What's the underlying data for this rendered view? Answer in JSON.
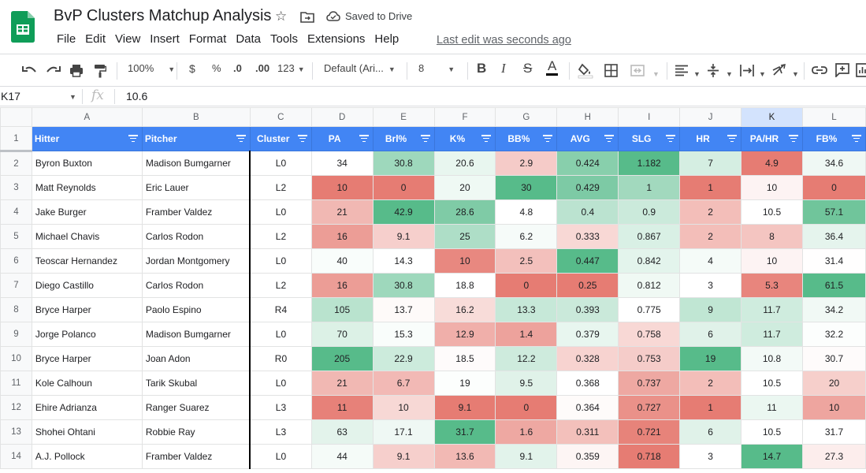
{
  "app": {
    "title": "BvP Clusters Matchup Analysis",
    "saved_status": "Saved to Drive",
    "last_edit": "Last edit was seconds ago",
    "menu": [
      "File",
      "Edit",
      "View",
      "Insert",
      "Format",
      "Data",
      "Tools",
      "Extensions",
      "Help"
    ]
  },
  "toolbar": {
    "zoom": "100%",
    "currency": "$",
    "percent": "%",
    "dec_decrease": ".0",
    "dec_increase": ".00",
    "more_formats": "123",
    "font": "Default (Ari...",
    "font_size": "8"
  },
  "formula_bar": {
    "cell_ref": "K17",
    "fx_label": "fx",
    "value": "10.6"
  },
  "colors": {
    "header_blue": "#4285f4",
    "green_strong": "#57bb8a",
    "red_strong": "#e67c73"
  },
  "sheet": {
    "columns": [
      "A",
      "B",
      "C",
      "D",
      "E",
      "F",
      "G",
      "H",
      "I",
      "J",
      "K",
      "L"
    ],
    "header_row": "1",
    "headers": [
      "Hitter",
      "Pitcher",
      "Cluster",
      "PA",
      "Brl%",
      "K%",
      "BB%",
      "AVG",
      "SLG",
      "HR",
      "PA/HR",
      "FB%"
    ],
    "rows": [
      {
        "n": "2",
        "cells": [
          "Byron Buxton",
          "Madison Bumgarner",
          "L0",
          "34",
          "30.8",
          "20.6",
          "2.9",
          "0.424",
          "1.182",
          "7",
          "4.9",
          "34.6"
        ]
      },
      {
        "n": "3",
        "cells": [
          "Matt Reynolds",
          "Eric Lauer",
          "L2",
          "10",
          "0",
          "20",
          "30",
          "0.429",
          "1",
          "1",
          "10",
          "0"
        ]
      },
      {
        "n": "4",
        "cells": [
          "Jake Burger",
          "Framber Valdez",
          "L0",
          "21",
          "42.9",
          "28.6",
          "4.8",
          "0.4",
          "0.9",
          "2",
          "10.5",
          "57.1"
        ]
      },
      {
        "n": "5",
        "cells": [
          "Michael Chavis",
          "Carlos Rodon",
          "L2",
          "16",
          "9.1",
          "25",
          "6.2",
          "0.333",
          "0.867",
          "2",
          "8",
          "36.4"
        ]
      },
      {
        "n": "6",
        "cells": [
          "Teoscar Hernandez",
          "Jordan Montgomery",
          "L0",
          "40",
          "14.3",
          "10",
          "2.5",
          "0.447",
          "0.842",
          "4",
          "10",
          "31.4"
        ]
      },
      {
        "n": "7",
        "cells": [
          "Diego Castillo",
          "Carlos Rodon",
          "L2",
          "16",
          "30.8",
          "18.8",
          "0",
          "0.25",
          "0.812",
          "3",
          "5.3",
          "61.5"
        ]
      },
      {
        "n": "8",
        "cells": [
          "Bryce Harper",
          "Paolo Espino",
          "R4",
          "105",
          "13.7",
          "16.2",
          "13.3",
          "0.393",
          "0.775",
          "9",
          "11.7",
          "34.2"
        ]
      },
      {
        "n": "9",
        "cells": [
          "Jorge Polanco",
          "Madison Bumgarner",
          "L0",
          "70",
          "15.3",
          "12.9",
          "1.4",
          "0.379",
          "0.758",
          "6",
          "11.7",
          "32.2"
        ]
      },
      {
        "n": "10",
        "cells": [
          "Bryce Harper",
          "Joan Adon",
          "R0",
          "205",
          "22.9",
          "18.5",
          "12.2",
          "0.328",
          "0.753",
          "19",
          "10.8",
          "30.7"
        ]
      },
      {
        "n": "11",
        "cells": [
          "Kole Calhoun",
          "Tarik Skubal",
          "L0",
          "21",
          "6.7",
          "19",
          "9.5",
          "0.368",
          "0.737",
          "2",
          "10.5",
          "20"
        ]
      },
      {
        "n": "12",
        "cells": [
          "Ehire Adrianza",
          "Ranger Suarez",
          "L3",
          "11",
          "10",
          "9.1",
          "0",
          "0.364",
          "0.727",
          "1",
          "11",
          "10"
        ]
      },
      {
        "n": "13",
        "cells": [
          "Shohei Ohtani",
          "Robbie Ray",
          "L3",
          "63",
          "17.1",
          "31.7",
          "1.6",
          "0.311",
          "0.721",
          "6",
          "10.5",
          "31.7"
        ]
      },
      {
        "n": "14",
        "cells": [
          "A.J. Pollock",
          "Framber Valdez",
          "L0",
          "44",
          "9.1",
          "13.6",
          "9.1",
          "0.359",
          "0.718",
          "3",
          "14.7",
          "27.3"
        ]
      }
    ]
  }
}
